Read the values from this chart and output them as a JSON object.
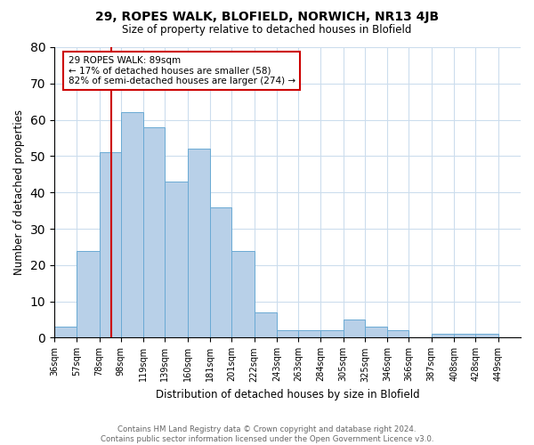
{
  "title": "29, ROPES WALK, BLOFIELD, NORWICH, NR13 4JB",
  "subtitle": "Size of property relative to detached houses in Blofield",
  "xlabel": "Distribution of detached houses by size in Blofield",
  "ylabel": "Number of detached properties",
  "footnote1": "Contains HM Land Registry data © Crown copyright and database right 2024.",
  "footnote2": "Contains public sector information licensed under the Open Government Licence v3.0.",
  "annotation_title": "29 ROPES WALK: 89sqm",
  "annotation_line2": "← 17% of detached houses are smaller (58)",
  "annotation_line3": "82% of semi-detached houses are larger (274) →",
  "bar_values": [
    3,
    24,
    51,
    62,
    58,
    43,
    52,
    36,
    24,
    7,
    2,
    2,
    2,
    5,
    3,
    2,
    0,
    1,
    1,
    1
  ],
  "bin_edges": [
    36,
    57,
    78,
    98,
    119,
    139,
    160,
    181,
    201,
    222,
    243,
    263,
    284,
    305,
    325,
    346,
    366,
    387,
    408,
    428,
    449
  ],
  "bin_labels": [
    "36sqm",
    "57sqm",
    "78sqm",
    "98sqm",
    "119sqm",
    "139sqm",
    "160sqm",
    "181sqm",
    "201sqm",
    "222sqm",
    "243sqm",
    "263sqm",
    "284sqm",
    "305sqm",
    "325sqm",
    "346sqm",
    "366sqm",
    "387sqm",
    "408sqm",
    "428sqm",
    "449sqm"
  ],
  "bar_color": "#b8d0e8",
  "bar_edgecolor": "#6aaad4",
  "vline_color": "#cc0000",
  "vline_x_index": 2.5,
  "ylim": [
    0,
    80
  ],
  "background_color": "#ffffff"
}
